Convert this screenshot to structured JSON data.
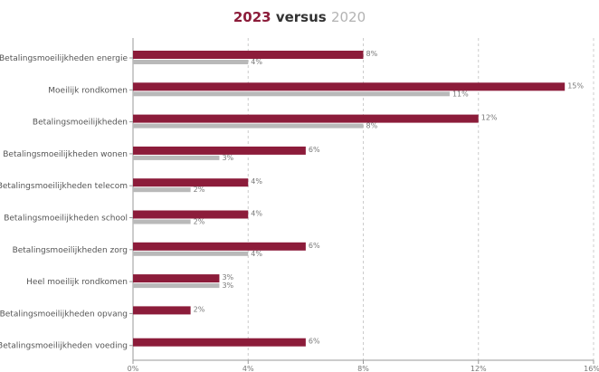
{
  "chart_data": {
    "type": "bar",
    "orientation": "horizontal",
    "title_parts": [
      "2023",
      "versus",
      "2020"
    ],
    "categories": [
      "Betalingsmoeilijkheden energie",
      "Moeilijk rondkomen",
      "Betalingsmoeilijkheden",
      "Betalingsmoeilijkheden wonen",
      "Betalingsmoeilijkheden telecom",
      "Betalingsmoeilijkheden school",
      "Betalingsmoeilijkheden zorg",
      "Heel moeilijk rondkomen",
      "Betalingsmoeilijkheden opvang",
      "Betalingsmoeilijkheden voeding"
    ],
    "series": [
      {
        "name": "2023",
        "color": "#8c1c3a",
        "values": [
          8,
          15,
          12,
          6,
          4,
          4,
          6,
          3,
          2,
          6
        ]
      },
      {
        "name": "2020",
        "color": "#b9b9b9",
        "values": [
          4,
          11,
          8,
          3,
          2,
          2,
          4,
          3,
          null,
          null
        ]
      }
    ],
    "value_labels": [
      [
        "8%",
        "15%",
        "12%",
        "6%",
        "4%",
        "4%",
        "6%",
        "3%",
        "2%",
        "6%"
      ],
      [
        "4%",
        "11%",
        "8%",
        "3%",
        "2%",
        "2%",
        "4%",
        "3%",
        "",
        ""
      ]
    ],
    "xlim": [
      0,
      16
    ],
    "xticks": [
      0,
      4,
      8,
      12,
      16
    ],
    "xtick_labels": [
      "0%",
      "4%",
      "8%",
      "12%",
      "16%"
    ],
    "grid": true
  }
}
